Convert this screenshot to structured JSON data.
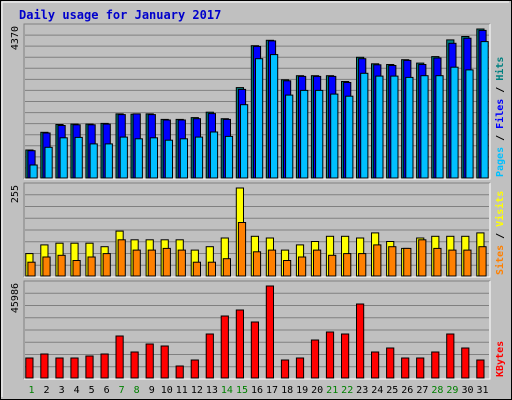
{
  "chart_data": {
    "type": "bar",
    "title": "Daily usage for January 2017",
    "categories": [
      "1",
      "2",
      "3",
      "4",
      "5",
      "6",
      "7",
      "8",
      "9",
      "10",
      "11",
      "12",
      "13",
      "14",
      "15",
      "16",
      "17",
      "18",
      "19",
      "20",
      "21",
      "22",
      "23",
      "24",
      "25",
      "26",
      "27",
      "28",
      "29",
      "30",
      "31"
    ],
    "weekend_days": [
      "1",
      "7",
      "8",
      "14",
      "15",
      "21",
      "22",
      "28",
      "29"
    ],
    "panels": [
      {
        "id": "top",
        "max_label": "4370",
        "ymax": 4370,
        "legend": [
          {
            "name": "Pages",
            "color": "#00c0ff"
          },
          {
            "name": "Files",
            "color": "#0000ff"
          },
          {
            "name": "Hits",
            "color": "#008080"
          }
        ],
        "separator": " / ",
        "series": [
          {
            "name": "Hits",
            "color": "#008080",
            "values": [
              820,
              1340,
              1570,
              1580,
              1580,
              1600,
              1880,
              1870,
              1880,
              1720,
              1720,
              1770,
              1930,
              1740,
              2650,
              3880,
              4040,
              2880,
              3000,
              3000,
              3000,
              2830,
              3540,
              3350,
              3330,
              3470,
              3370,
              3560,
              4050,
              4150,
              4370
            ]
          },
          {
            "name": "Files",
            "color": "#0000ff",
            "values": [
              800,
              1320,
              1540,
              1560,
              1560,
              1580,
              1860,
              1880,
              1860,
              1700,
              1700,
              1740,
              1890,
              1720,
              2600,
              3860,
              4020,
              2850,
              2980,
              2980,
              2980,
              2800,
              3500,
              3320,
              3300,
              3450,
              3330,
              3520,
              3950,
              4100,
              4330
            ]
          },
          {
            "name": "Pages",
            "color": "#00c0ff",
            "values": [
              380,
              900,
              1180,
              1190,
              1000,
              1000,
              1200,
              1150,
              1180,
              1110,
              1150,
              1200,
              1350,
              1220,
              2150,
              3500,
              3620,
              2430,
              2570,
              2570,
              2460,
              2400,
              3070,
              2990,
              2990,
              2950,
              3000,
              3000,
              3250,
              3170,
              4000
            ]
          }
        ]
      },
      {
        "id": "middle",
        "max_label": "255",
        "ymax": 255,
        "legend": [
          {
            "name": "Sites",
            "color": "#ff8000"
          },
          {
            "name": "Visits",
            "color": "#ffff00"
          }
        ],
        "separator": " / ",
        "series": [
          {
            "name": "Visits",
            "color": "#ffff00",
            "values": [
              65,
              90,
              95,
              95,
              95,
              85,
              130,
              105,
              105,
              105,
              105,
              75,
              85,
              110,
              255,
              115,
              110,
              75,
              90,
              100,
              115,
              115,
              110,
              125,
              100,
              80,
              110,
              115,
              115,
              115,
              125
            ]
          },
          {
            "name": "Sites",
            "color": "#ff8000",
            "values": [
              40,
              55,
              60,
              45,
              55,
              65,
              105,
              75,
              75,
              80,
              75,
              40,
              40,
              50,
              155,
              70,
              75,
              45,
              55,
              75,
              60,
              65,
              65,
              90,
              85,
              80,
              105,
              80,
              75,
              75,
              85
            ]
          }
        ]
      },
      {
        "id": "bottom",
        "max_label": "45986",
        "ymax": 45986,
        "legend": [
          {
            "name": "KBytes",
            "color": "#ff0000"
          }
        ],
        "separator": "",
        "series": [
          {
            "name": "KBytes",
            "color": "#ff0000",
            "values": [
              10000,
              12000,
              10000,
              10000,
              11000,
              12000,
              21000,
              13000,
              17000,
              16000,
              6000,
              9000,
              22000,
              31000,
              34000,
              28000,
              46000,
              9000,
              10000,
              19000,
              23000,
              22000,
              37000,
              13000,
              15000,
              10000,
              10000,
              13000,
              22000,
              15000,
              9000
            ]
          }
        ]
      }
    ]
  }
}
